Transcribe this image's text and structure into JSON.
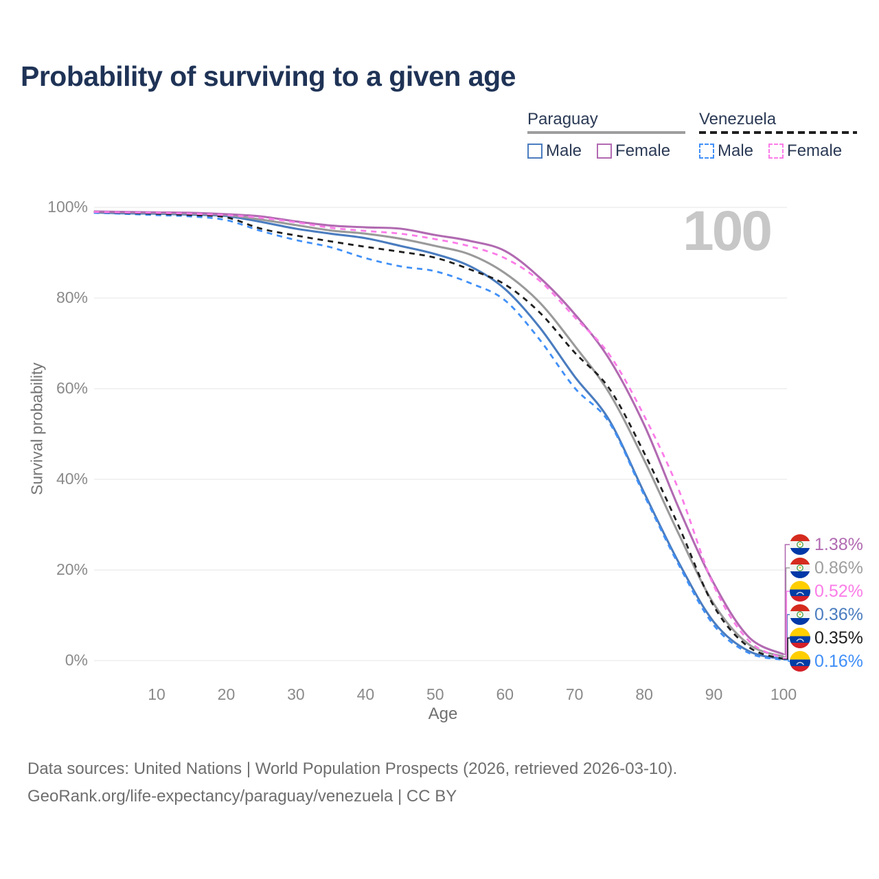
{
  "title": "Probability of surviving to a given age",
  "watermark": "100",
  "legend": {
    "groups": [
      {
        "name": "Paraguay",
        "underline_style": "solid",
        "underline_color": "#9e9e9e",
        "items": [
          {
            "label": "Male",
            "color": "#4a7cbf",
            "dashed": false
          },
          {
            "label": "Female",
            "color": "#b16ab1",
            "dashed": false
          }
        ]
      },
      {
        "name": "Venezuela",
        "underline_style": "dashed",
        "underline_color": "#1f1f1f",
        "items": [
          {
            "label": "Male",
            "color": "#4190f7",
            "dashed": true
          },
          {
            "label": "Female",
            "color": "#fb7ce8",
            "dashed": true
          }
        ]
      }
    ]
  },
  "chart_data": {
    "type": "line",
    "title": "Probability of surviving to a given age",
    "xlabel": "Age",
    "ylabel": "Survival probability",
    "xlim": [
      0,
      100
    ],
    "ylim": [
      0,
      100
    ],
    "grid": true,
    "x_ticks": [
      10,
      20,
      30,
      40,
      50,
      60,
      70,
      80,
      90,
      100
    ],
    "y_ticks": [
      {
        "value": 0,
        "label": "0%"
      },
      {
        "value": 20,
        "label": "20%"
      },
      {
        "value": 40,
        "label": "40%"
      },
      {
        "value": 60,
        "label": "60%"
      },
      {
        "value": 80,
        "label": "80%"
      },
      {
        "value": 100,
        "label": "100%"
      }
    ],
    "ages": [
      1,
      5,
      10,
      15,
      20,
      25,
      30,
      35,
      40,
      45,
      50,
      55,
      60,
      65,
      70,
      75,
      80,
      85,
      90,
      95,
      100
    ],
    "series": [
      {
        "name": "Paraguay Male",
        "country": "paraguay",
        "sex": "male",
        "color": "#4a7cbf",
        "dashed": false,
        "values": [
          98.9,
          98.7,
          98.6,
          98.4,
          98.1,
          96.8,
          95.3,
          94.2,
          93.2,
          91.5,
          89.7,
          87.0,
          82.0,
          73.5,
          62.7,
          53.0,
          37.0,
          21.5,
          8.5,
          2.1,
          0.36
        ],
        "end_label": {
          "value": "0.36%",
          "color": "#4a7cbf",
          "row": 3
        }
      },
      {
        "name": "Paraguay",
        "country": "paraguay",
        "sex": "both",
        "color": "#9a9a9a",
        "dashed": false,
        "values": [
          99.0,
          98.9,
          98.8,
          98.6,
          98.3,
          97.3,
          96.1,
          94.9,
          94.2,
          93.1,
          91.5,
          89.6,
          85.5,
          79.0,
          69.5,
          59.0,
          44.2,
          27.8,
          12.5,
          3.6,
          0.86
        ],
        "end_label": {
          "value": "0.86%",
          "color": "#9e9e9e",
          "row": 1
        }
      },
      {
        "name": "Paraguay Female",
        "country": "paraguay",
        "sex": "female",
        "color": "#b16ab1",
        "dashed": false,
        "values": [
          99.1,
          99.0,
          98.9,
          98.8,
          98.5,
          98.0,
          96.9,
          96.0,
          95.6,
          95.3,
          93.9,
          92.6,
          90.4,
          84.5,
          76.5,
          66.5,
          52.0,
          33.5,
          17.0,
          5.2,
          1.38
        ],
        "end_label": {
          "value": "1.38%",
          "color": "#b16ab1",
          "row": 0
        }
      },
      {
        "name": "Venezuela Male",
        "country": "venezuela",
        "sex": "male",
        "color": "#4190f7",
        "dashed": true,
        "values": [
          98.8,
          98.6,
          98.3,
          98.0,
          97.2,
          94.8,
          92.8,
          91.2,
          88.8,
          87.0,
          85.9,
          83.3,
          79.5,
          70.8,
          60.2,
          52.5,
          36.5,
          21.0,
          7.8,
          1.7,
          0.16
        ],
        "end_label": {
          "value": "0.16%",
          "color": "#3f8ef7",
          "row": 5
        }
      },
      {
        "name": "Venezuela",
        "country": "venezuela",
        "sex": "both",
        "color": "#1f1f1f",
        "dashed": true,
        "values": [
          99.0,
          98.8,
          98.6,
          98.3,
          97.8,
          95.3,
          93.8,
          92.5,
          91.3,
          90.2,
          88.9,
          86.3,
          83.0,
          76.8,
          68.0,
          60.0,
          45.8,
          29.5,
          12.0,
          3.0,
          0.35
        ],
        "end_label": {
          "value": "0.35%",
          "color": "#1f1f1f",
          "row": 4
        }
      },
      {
        "name": "Venezuela Female",
        "country": "venezuela",
        "sex": "female",
        "color": "#fb7ce8",
        "dashed": true,
        "values": [
          99.0,
          98.9,
          98.8,
          98.6,
          98.3,
          97.7,
          96.7,
          95.5,
          94.8,
          94.2,
          93.0,
          91.4,
          88.8,
          83.8,
          75.8,
          67.5,
          54.0,
          37.5,
          16.5,
          4.4,
          0.52
        ],
        "end_label": {
          "value": "0.52%",
          "color": "#fb7ce8",
          "row": 2
        }
      }
    ],
    "legend_position": "top-right",
    "current_age_indicator": "100"
  },
  "footer": {
    "line1": "Data sources: United Nations | World Population Prospects (2026, retrieved 2026-03-10).",
    "line2": "GeoRank.org/life-expectancy/paraguay/venezuela | CC BY"
  }
}
